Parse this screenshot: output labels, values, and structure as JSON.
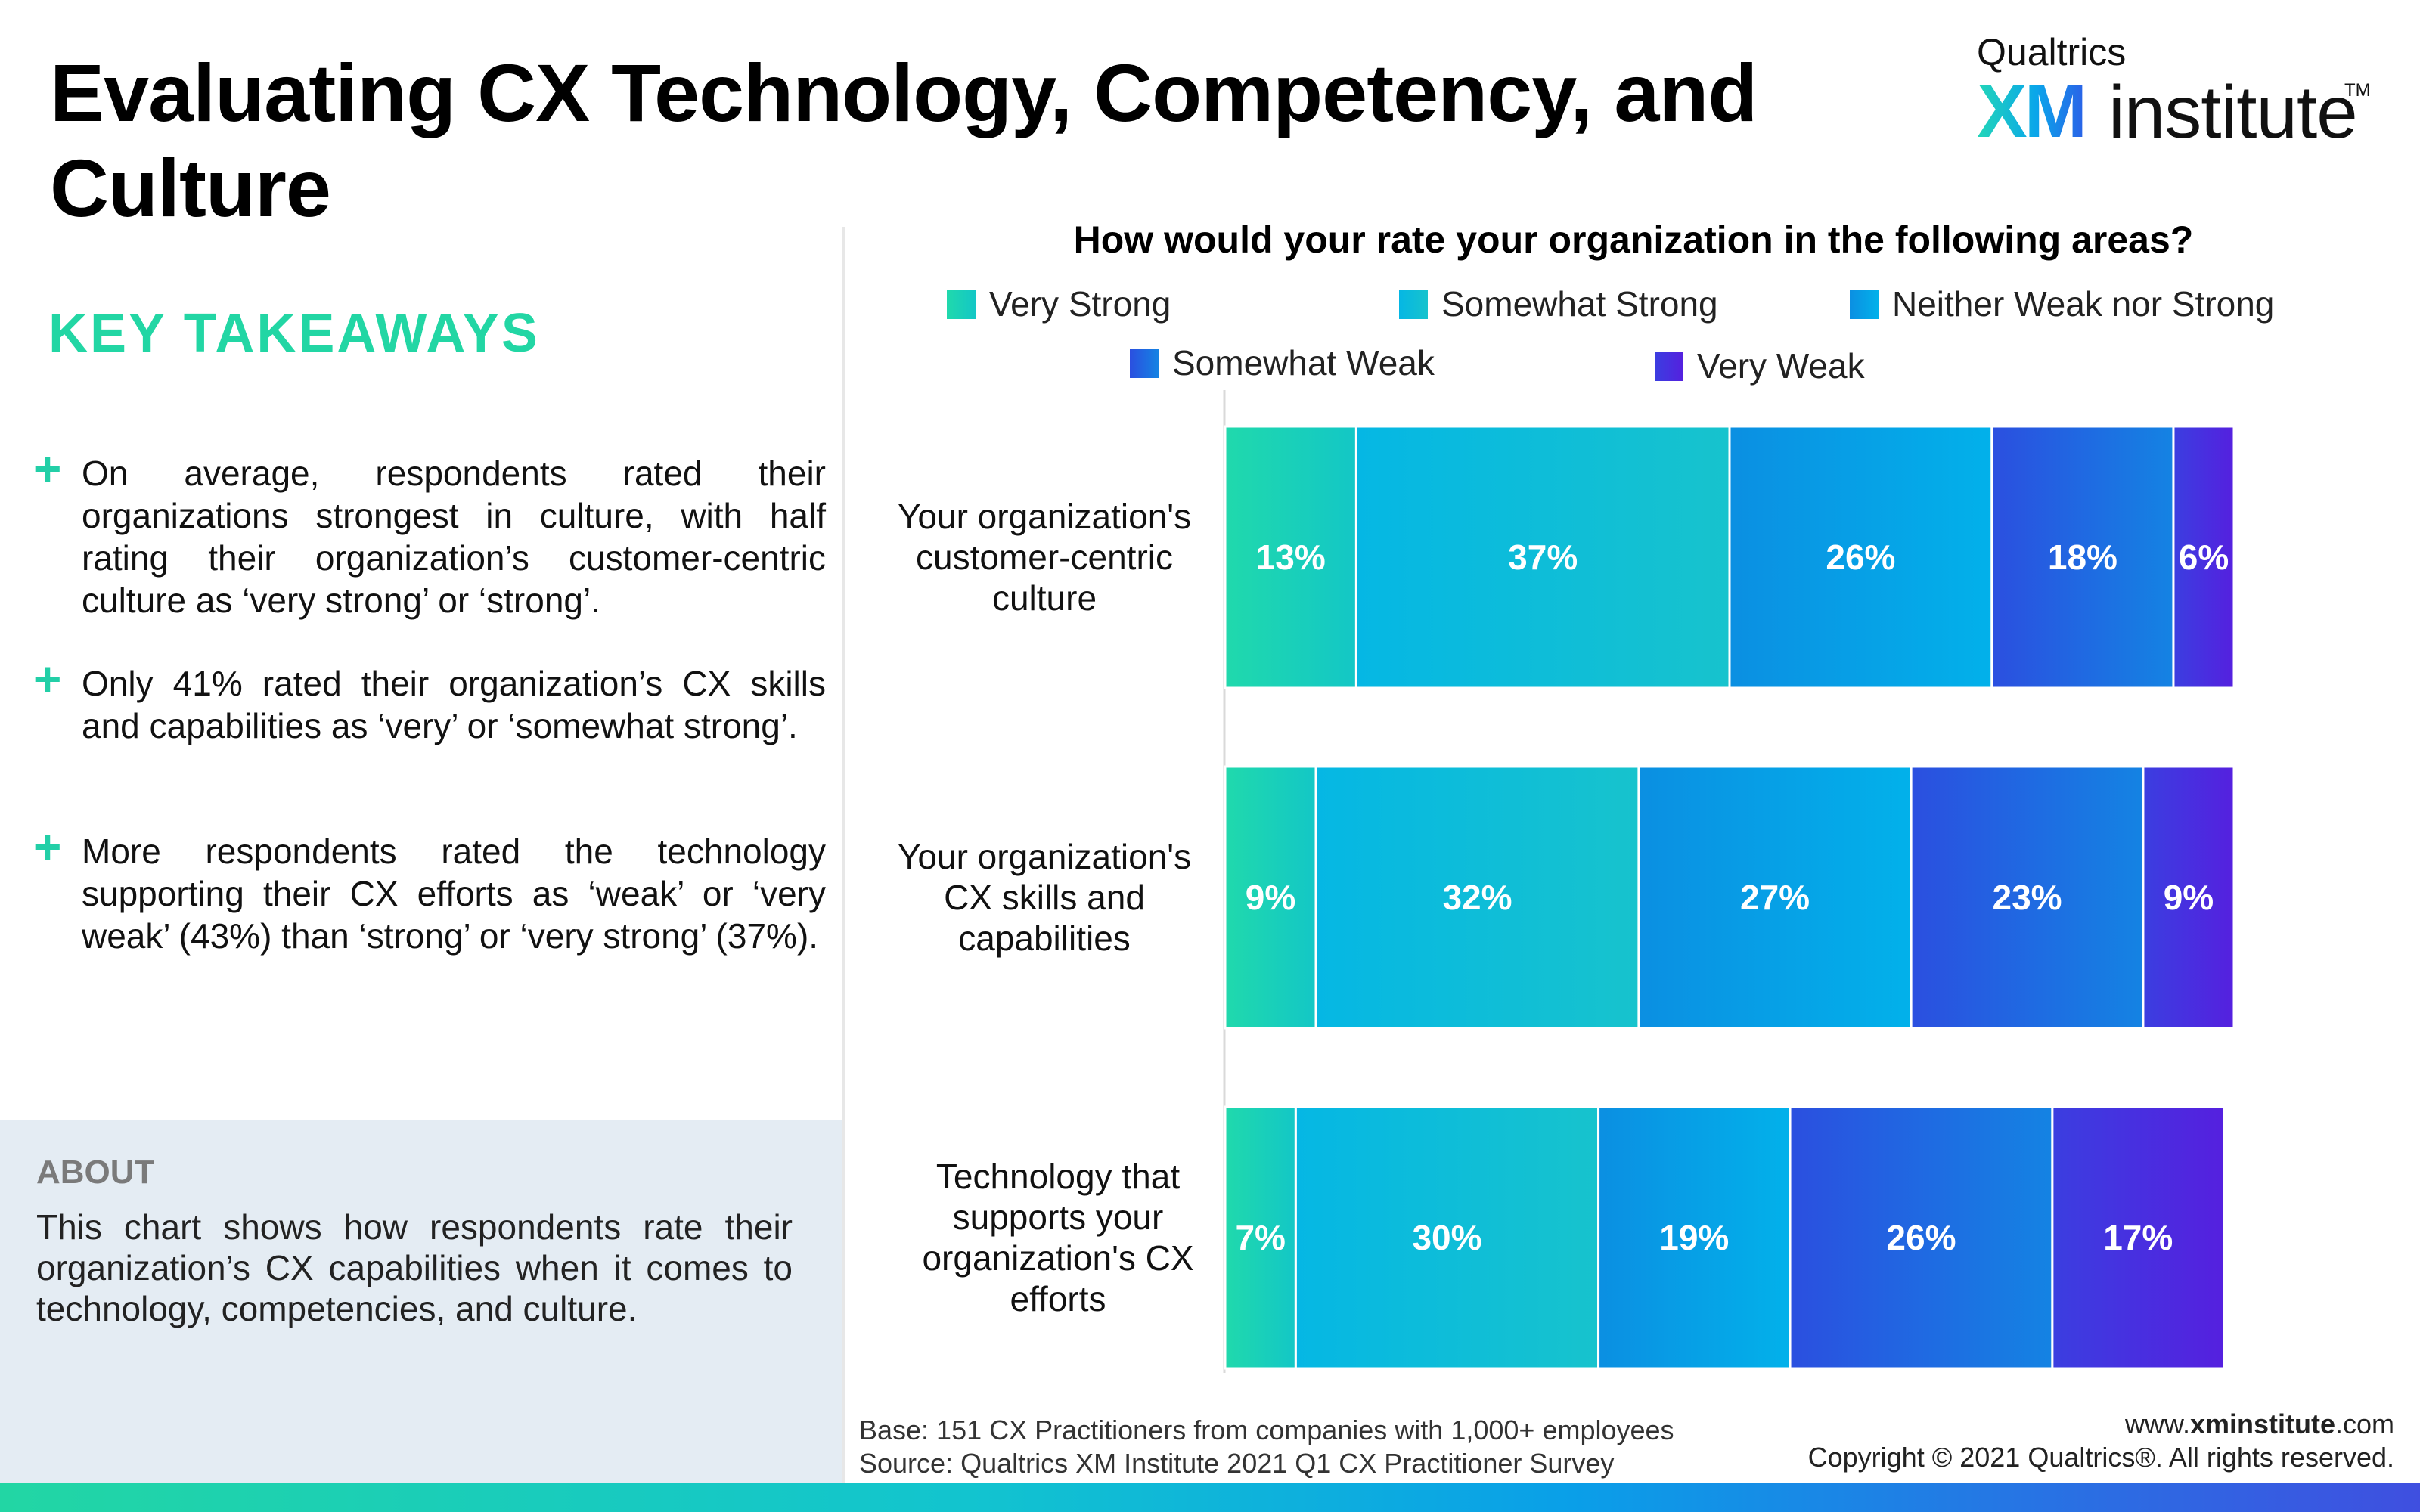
{
  "page": {
    "title": "Evaluating CX Technology, Competency, and Culture"
  },
  "logo": {
    "company": "Qualtrics",
    "xm": "XM",
    "institute": "institute",
    "tm": "TM"
  },
  "takeaways": {
    "heading": "KEY TAKEAWAYS",
    "bullet_icon": "plus-icon",
    "items": [
      "On average, respondents rated their organizations strongest in culture, with half rating their organization’s customer-centric culture as ‘very strong’ or ‘strong’.",
      "Only 41% rated their organization’s CX skills and capabilities as ‘very’ or ‘somewhat strong’.",
      "More respondents rated the technology supporting their CX efforts as ‘weak’ or ‘very weak’ (43%) than ‘strong’ or ‘very strong’ (37%)."
    ]
  },
  "about": {
    "heading": "ABOUT",
    "text": "This chart shows how respondents rate their organization’s CX capabilities when it comes to technology, competencies, and culture."
  },
  "chart_data": {
    "type": "bar",
    "orientation": "horizontal",
    "stacked": true,
    "title": "How would your rate your organization in the following areas?",
    "categories": [
      "Your organization's customer-centric culture",
      "Your organization's CX skills and capabilities",
      "Technology that supports your organization's CX efforts"
    ],
    "series": [
      {
        "name": "Very Strong",
        "values": [
          13,
          9,
          7
        ],
        "color_start": "#20d9ac",
        "color_end": "#13c7c6"
      },
      {
        "name": "Somewhat Strong",
        "values": [
          37,
          32,
          30
        ],
        "color_start": "#05b7e4",
        "color_end": "#17c3cd"
      },
      {
        "name": "Neither Weak nor Strong",
        "values": [
          26,
          27,
          19
        ],
        "color_start": "#0b8fe2",
        "color_end": "#02b1ea"
      },
      {
        "name": "Somewhat Weak",
        "values": [
          18,
          23,
          26
        ],
        "color_start": "#2b4fe0",
        "color_end": "#1483e3"
      },
      {
        "name": "Very Weak",
        "values": [
          6,
          9,
          17
        ],
        "color_start": "#3b3ee0",
        "color_end": "#5520df"
      }
    ],
    "data_labels": [
      [
        "13%",
        "37%",
        "26%",
        "18%",
        "6%"
      ],
      [
        "9%",
        "32%",
        "27%",
        "23%",
        "9%"
      ],
      [
        "7%",
        "30%",
        "19%",
        "26%",
        "17%"
      ]
    ],
    "value_total": 100,
    "legend_position": "top",
    "grid": false
  },
  "footer": {
    "base": "Base: 151 CX Practitioners from companies with 1,000+ employees",
    "source": "Source: Qualtrics XM Institute 2021 Q1 CX Practitioner Survey",
    "site_prefix": "www.",
    "site_bold": "xminstitute",
    "site_suffix": ".com",
    "copyright": "Copyright © 2021 Qualtrics®. All rights reserved."
  }
}
